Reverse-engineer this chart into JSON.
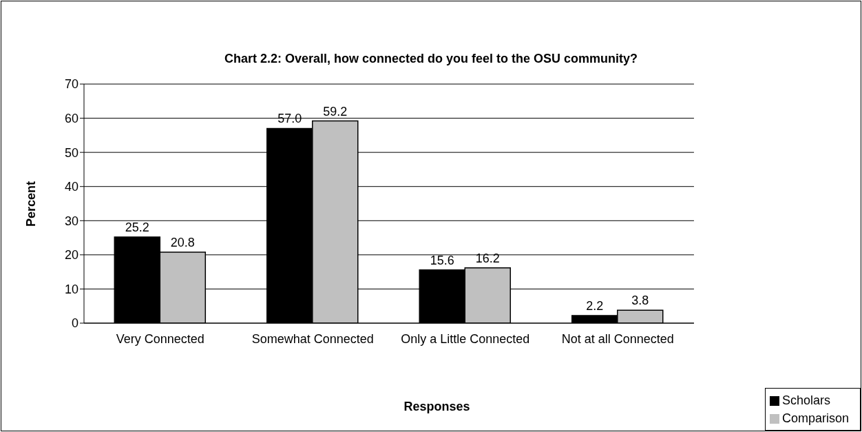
{
  "chart_data": {
    "type": "bar",
    "title": "Chart 2.2: Overall, how connected do you feel to the OSU community?",
    "xlabel": "Responses",
    "ylabel": "Percent",
    "categories": [
      "Very Connected",
      "Somewhat Connected",
      "Only a Little Connected",
      "Not at all Connected"
    ],
    "series": [
      {
        "name": "Scholars",
        "color": "#000000",
        "values": [
          25.2,
          57.0,
          15.6,
          2.2
        ],
        "value_labels": [
          "25.2",
          "57.0",
          "15.6",
          "2.2"
        ]
      },
      {
        "name": "Comparison",
        "color": "#c0c0c0",
        "values": [
          20.8,
          59.2,
          16.2,
          3.8
        ],
        "value_labels": [
          "20.8",
          "59.2",
          "16.2",
          "3.8"
        ]
      }
    ],
    "ylim": [
      0,
      70
    ],
    "yticks": [
      0,
      10,
      20,
      30,
      40,
      50,
      60,
      70
    ],
    "grid": "y",
    "legend": "bottom right"
  }
}
